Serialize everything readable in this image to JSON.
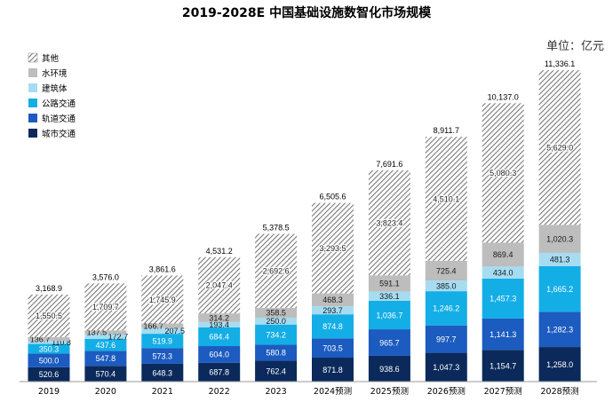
{
  "chart_data": {
    "type": "bar",
    "stacked": true,
    "title": "2019-2028E 中国基础设施数智化市场规模",
    "unit_label": "单位：亿元",
    "xlabel": "",
    "ylabel": "",
    "categories": [
      "2019",
      "2020",
      "2021",
      "2022",
      "2023",
      "2024预测",
      "2025预测",
      "2026预测",
      "2027预测",
      "2028预测"
    ],
    "totals": [
      "3,168.9",
      "3,576.0",
      "3,861.6",
      "4,531.2",
      "5,378.5",
      "6,505.6",
      "7,691.6",
      "8,911.7",
      "10,137.0",
      "11,336.1"
    ],
    "totals_values": [
      3168.9,
      3576.0,
      3861.6,
      4531.2,
      5378.5,
      6505.6,
      7691.6,
      8911.7,
      10137.0,
      11336.1
    ],
    "series": [
      {
        "name": "城市交通",
        "color": "#0b2a5b",
        "values": [
          520.6,
          570.4,
          648.3,
          687.8,
          762.4,
          871.8,
          938.6,
          1047.3,
          1154.7,
          1258.0
        ],
        "labels": [
          "520.6",
          "570.4",
          "648.3",
          "687.8",
          "762.4",
          "871.8",
          "938.6",
          "1,047.3",
          "1,154.7",
          "1,258.0"
        ]
      },
      {
        "name": "轨道交通",
        "color": "#1c5bbf",
        "values": [
          500.0,
          547.8,
          573.3,
          604.0,
          580.8,
          703.5,
          965.7,
          997.7,
          1141.3,
          1282.3
        ],
        "labels": [
          "500.0",
          "547.8",
          "573.3",
          "604.0",
          "580.8",
          "703.5",
          "965.7",
          "997.7",
          "1,141.3",
          "1,282.3"
        ]
      },
      {
        "name": "公路交通",
        "color": "#14aee6",
        "values": [
          350.3,
          437.6,
          519.9,
          684.4,
          734.2,
          874.8,
          1036.7,
          1246.2,
          1457.3,
          1665.2
        ],
        "labels": [
          "350.3",
          "437.6",
          "519.9",
          "684.4",
          "734.2",
          "874.8",
          "1,036.7",
          "1,246.2",
          "1,457.3",
          "1,665.2"
        ]
      },
      {
        "name": "建筑体",
        "color": "#a6dcf2",
        "values": [
          110.8,
          172.7,
          207.5,
          193.4,
          250.0,
          293.7,
          336.1,
          385.0,
          434.0,
          481.3
        ],
        "labels": [
          "110.8",
          "172.7",
          "207.5",
          "193.4",
          "250.0",
          "293.7",
          "336.1",
          "385.0",
          "434.0",
          "481.3"
        ]
      },
      {
        "name": "水环境",
        "color": "#bdbdbd",
        "values": [
          136.7,
          137.5,
          166.7,
          314.2,
          358.5,
          468.3,
          591.1,
          725.4,
          869.4,
          1020.3
        ],
        "labels": [
          "136.7",
          "137.5",
          "166.7",
          "314.2",
          "358.5",
          "468.3",
          "591.1",
          "725.4",
          "869.4",
          "1,020.3"
        ]
      },
      {
        "name": "其他",
        "color": "hatched",
        "values": [
          1550.5,
          1709.7,
          1745.9,
          2047.4,
          2692.6,
          3293.5,
          3823.4,
          4510.1,
          5080.3,
          5629.0
        ],
        "labels": [
          "1,550.5",
          "1,709.7",
          "1,745.9",
          "2,047.4",
          "2,692.6",
          "3,293.5",
          "3,823.4",
          "4,510.1",
          "5,080.3",
          "5,629.0"
        ]
      }
    ],
    "legend_position": "top-left",
    "legend_order": [
      "其他",
      "水环境",
      "建筑体",
      "公路交通",
      "轨道交通",
      "城市交通"
    ],
    "grid": false
  }
}
